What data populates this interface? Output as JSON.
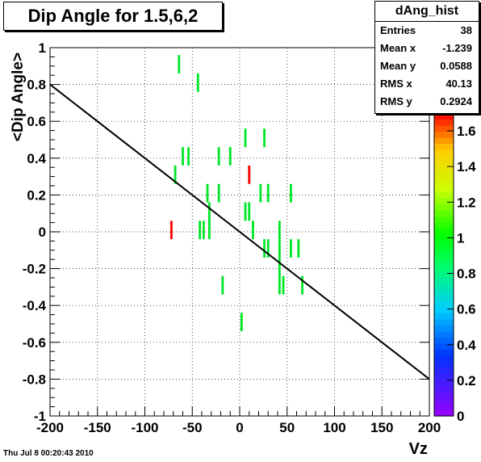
{
  "chart_data": {
    "type": "heatmap",
    "title": "Dip Angle for 1.5,6,2",
    "xlabel": "Vz",
    "ylabel": "<Dip Angle>",
    "xlim": [
      -200,
      200
    ],
    "ylim": [
      -1,
      1
    ],
    "x_ticks": [
      "-200",
      "-150",
      "-100",
      "-50",
      "0",
      "50",
      "100",
      "150",
      "200"
    ],
    "y_ticks": [
      "-1",
      "-0.8",
      "-0.6",
      "-0.4",
      "-0.2",
      "0",
      "0.2",
      "0.4",
      "0.6",
      "0.8",
      "1"
    ],
    "grid": true,
    "cells": [
      {
        "x": -64,
        "y": 0.86,
        "z": 1
      },
      {
        "x": -44,
        "y": 0.76,
        "z": 1
      },
      {
        "x": -60,
        "y": 0.36,
        "z": 1
      },
      {
        "x": -54,
        "y": 0.36,
        "z": 1
      },
      {
        "x": -22,
        "y": 0.36,
        "z": 1
      },
      {
        "x": -10,
        "y": 0.36,
        "z": 1
      },
      {
        "x": 6,
        "y": 0.46,
        "z": 1
      },
      {
        "x": 26,
        "y": 0.46,
        "z": 1
      },
      {
        "x": -68,
        "y": 0.26,
        "z": 1
      },
      {
        "x": 10,
        "y": 0.26,
        "z": 1.6
      },
      {
        "x": -34,
        "y": 0.16,
        "z": 1
      },
      {
        "x": -22,
        "y": 0.16,
        "z": 1
      },
      {
        "x": 22,
        "y": 0.16,
        "z": 1
      },
      {
        "x": 30,
        "y": 0.16,
        "z": 1
      },
      {
        "x": 54,
        "y": 0.16,
        "z": 1
      },
      {
        "x": -32,
        "y": 0.06,
        "z": 1
      },
      {
        "x": 6,
        "y": 0.06,
        "z": 1
      },
      {
        "x": 10,
        "y": 0.06,
        "z": 1
      },
      {
        "x": -32,
        "y": -0.04,
        "z": 1
      },
      {
        "x": -72,
        "y": -0.04,
        "z": 1.6
      },
      {
        "x": -42,
        "y": -0.04,
        "z": 1
      },
      {
        "x": -38,
        "y": -0.04,
        "z": 1
      },
      {
        "x": 14,
        "y": -0.04,
        "z": 1
      },
      {
        "x": 42,
        "y": -0.04,
        "z": 1
      },
      {
        "x": 26,
        "y": -0.14,
        "z": 1
      },
      {
        "x": 30,
        "y": -0.14,
        "z": 1
      },
      {
        "x": 42,
        "y": -0.14,
        "z": 1
      },
      {
        "x": 54,
        "y": -0.14,
        "z": 1
      },
      {
        "x": 62,
        "y": -0.14,
        "z": 1
      },
      {
        "x": 42,
        "y": -0.24,
        "z": 1
      },
      {
        "x": -18,
        "y": -0.34,
        "z": 1
      },
      {
        "x": 42,
        "y": -0.34,
        "z": 1
      },
      {
        "x": 46,
        "y": -0.34,
        "z": 1
      },
      {
        "x": 66,
        "y": -0.34,
        "z": 1
      },
      {
        "x": 2,
        "y": -0.54,
        "z": 1
      }
    ],
    "fit_line": {
      "x": [
        -200,
        200
      ],
      "y": [
        0.8,
        -0.8
      ]
    },
    "z_axis": {
      "range": [
        0,
        1.7
      ],
      "ticks": [
        "0",
        "0.2",
        "0.4",
        "0.6",
        "0.8",
        "1",
        "1.2",
        "1.4",
        "1.6"
      ]
    }
  },
  "stats_box": {
    "name": "dAng_hist",
    "rows": [
      {
        "label": "Entries",
        "value": "38"
      },
      {
        "label": "Mean x",
        "value": "-1.239"
      },
      {
        "label": "Mean y",
        "value": "0.0588"
      },
      {
        "label": "RMS x",
        "value": "40.13"
      },
      {
        "label": "RMS y",
        "value": "0.2924"
      }
    ]
  },
  "footer": "Thu Jul  8 00:20:43 2010",
  "colors": {
    "frame": "#000000",
    "grid": "#000000",
    "fit": "#000000"
  }
}
